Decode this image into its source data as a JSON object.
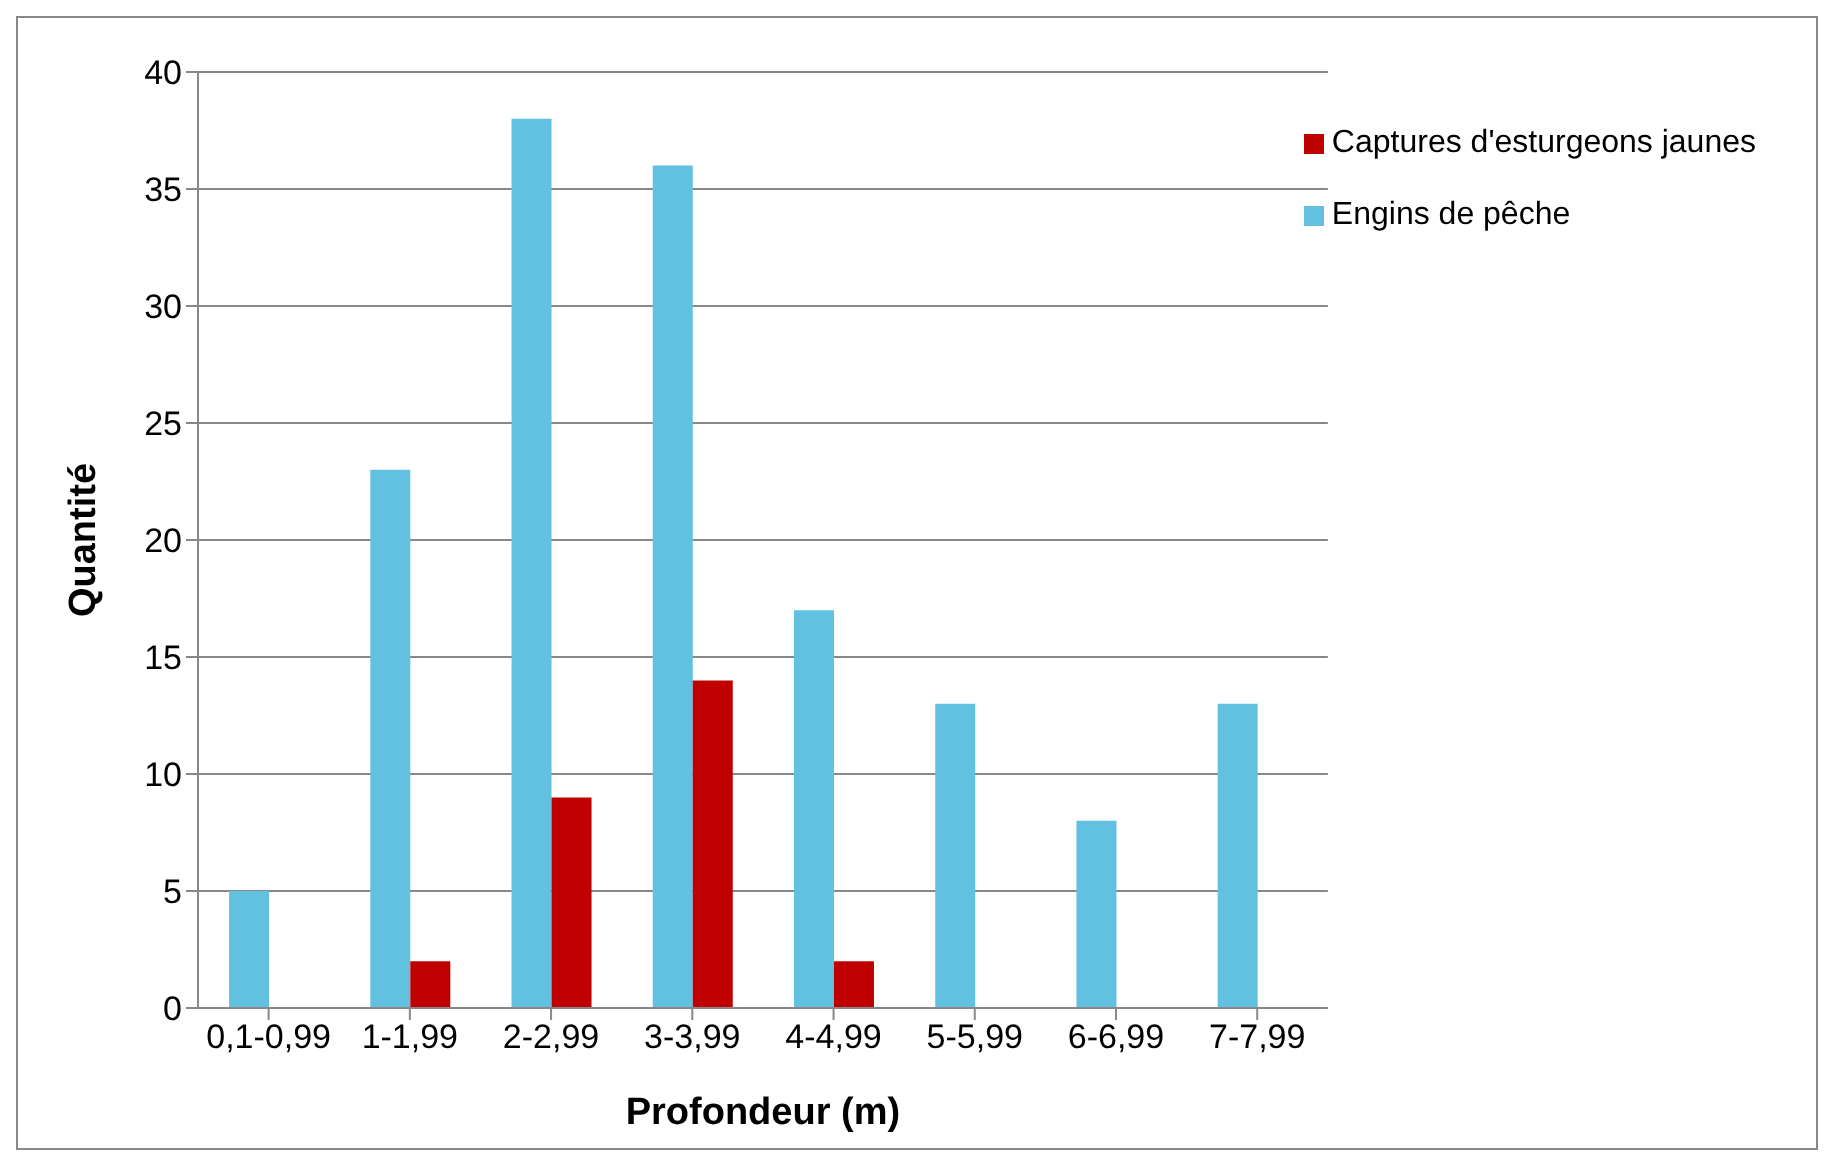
{
  "chart_data": {
    "type": "bar",
    "xlabel": "Profondeur (m)",
    "ylabel": "Quantité",
    "categories": [
      "0,1-0,99",
      "1-1,99",
      "2-2,99",
      "3-3,99",
      "4-4,99",
      "5-5,99",
      "6-6,99",
      "7-7,99"
    ],
    "series": [
      {
        "name": "Engins de pêche",
        "color": "#62c0e0",
        "values": [
          5,
          23,
          38,
          36,
          17,
          13,
          8,
          13
        ]
      },
      {
        "name": "Captures d'esturgeons jaunes",
        "color": "#c00000",
        "values": [
          0,
          2,
          9,
          14,
          2,
          0,
          0,
          0
        ]
      }
    ],
    "ylim": [
      0,
      40
    ],
    "yticks": [
      0,
      5,
      10,
      15,
      20,
      25,
      30,
      35,
      40
    ],
    "grid": "y",
    "legend": "top right"
  }
}
